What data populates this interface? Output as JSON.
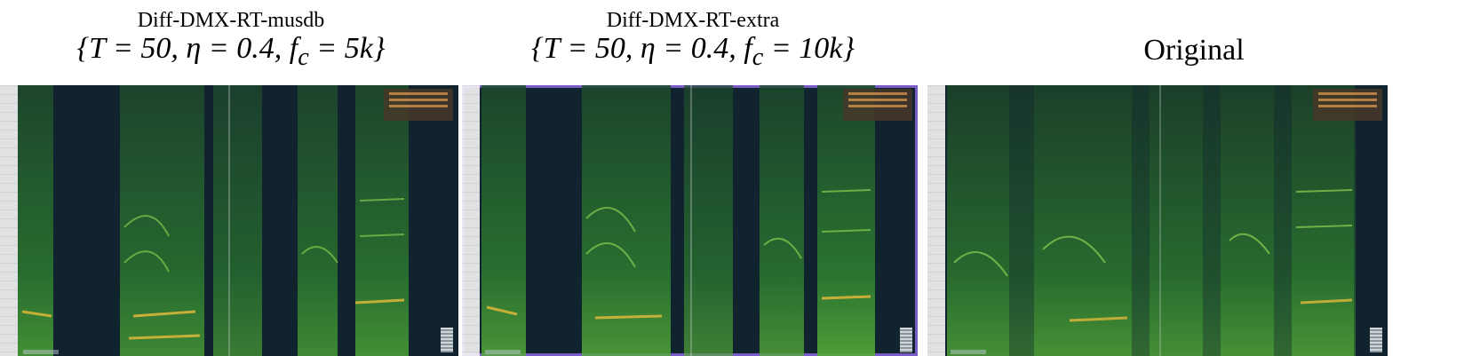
{
  "panels": [
    {
      "title": "Diff-DMX-RT-musdb",
      "params": "{T = 50, η = 0.4, fₑ = 5k}"
    },
    {
      "title": "Diff-DMX-RT-extra",
      "params": "{T = 50, η = 0.4, fₑ = 10k}"
    },
    {
      "title": "Original"
    }
  ]
}
